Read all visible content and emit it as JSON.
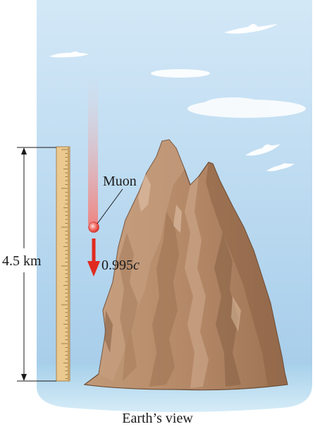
{
  "labels": {
    "height": "4.5 km",
    "particle": "Muon",
    "speed_value": "0.995",
    "speed_unit": "c",
    "caption": "Earth’s view"
  },
  "colors": {
    "sky_top": "#cfe5f5",
    "sky_bottom": "#a9cfec",
    "sea": "#9fcbe6",
    "rock": "#b98e6c",
    "rock_shadow": "#8d6547",
    "rock_highlight": "#d6b496",
    "ruler": "#e9c68c",
    "arrow": "#e02a20",
    "muon": "#f26b66"
  },
  "icons": {
    "muon": "glowing-ball",
    "arrow": "down-arrow",
    "ruler": "measuring-stick"
  }
}
